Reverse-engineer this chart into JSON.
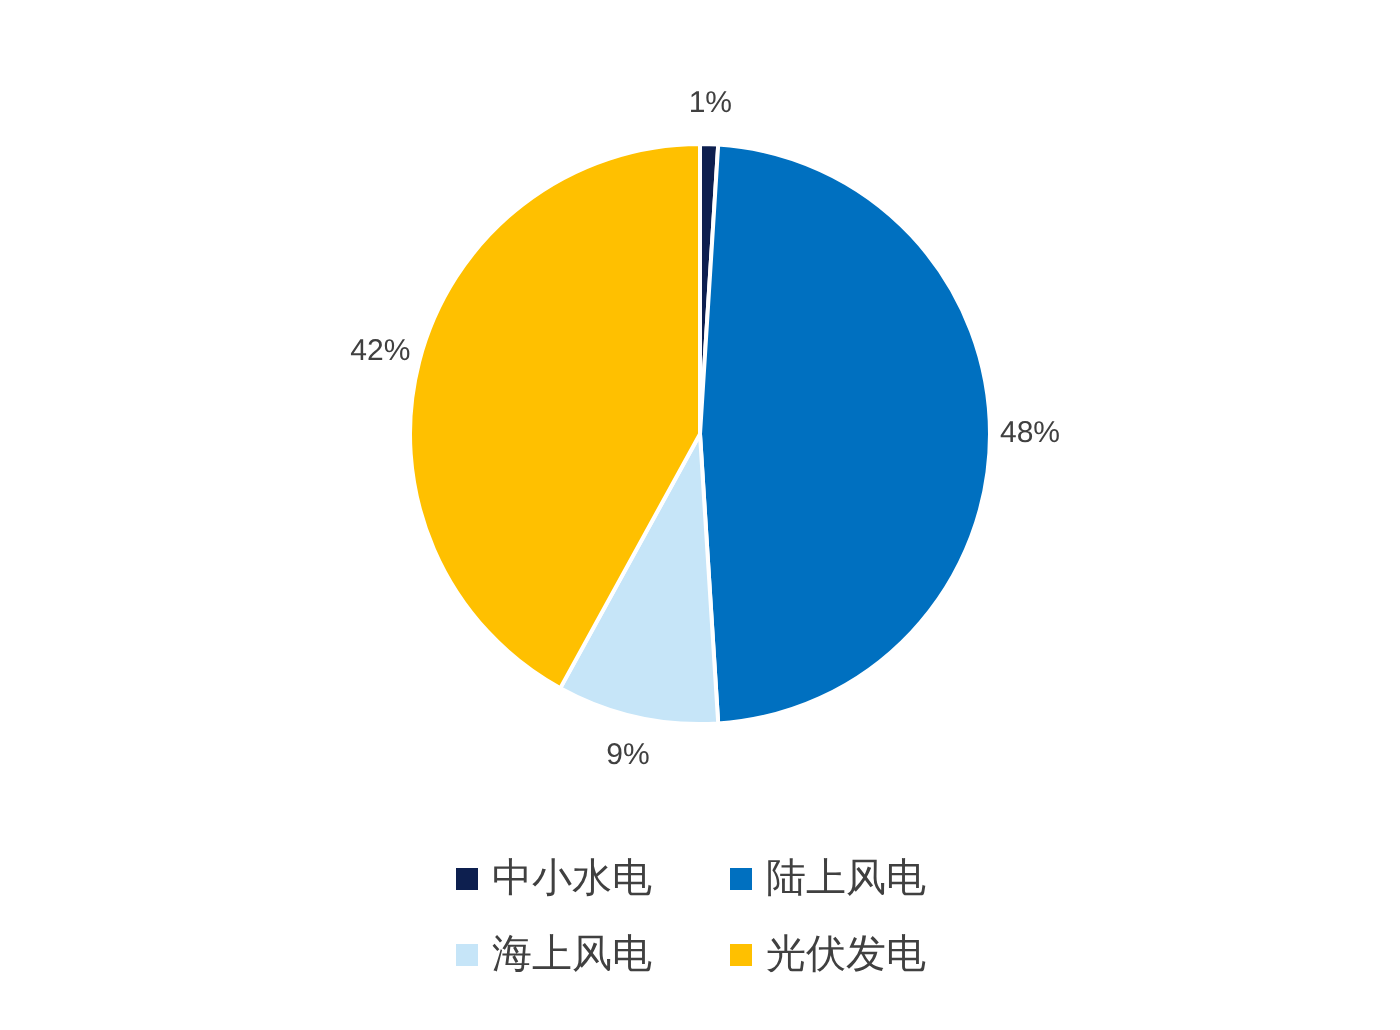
{
  "chart_data": {
    "type": "pie",
    "categories": [
      "中小水电",
      "陆上风电",
      "海上风电",
      "光伏发电"
    ],
    "values": [
      1,
      48,
      9,
      42
    ],
    "colors": [
      "#0d1f4f",
      "#0070c0",
      "#c6e5f8",
      "#ffc000"
    ],
    "value_labels": [
      "1%",
      "48%",
      "9%",
      "42%"
    ],
    "legend": "bottom"
  }
}
